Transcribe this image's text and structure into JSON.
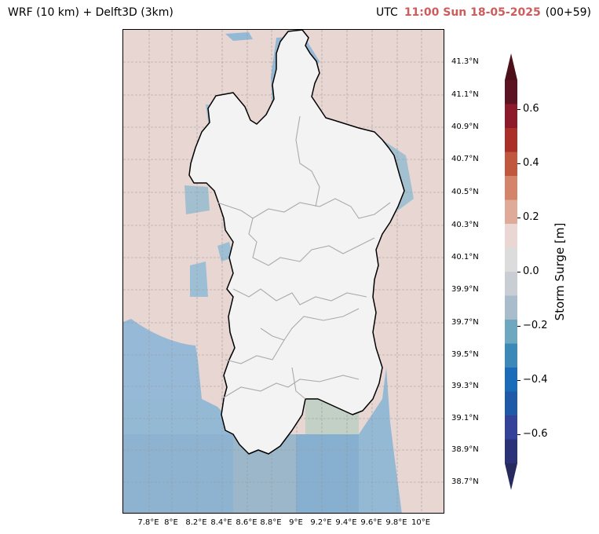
{
  "header": {
    "model_label": "WRF (10 km) + Delft3D (3km)",
    "utc_label": "UTC",
    "time_label": "11:00 Sun 18-05-2025",
    "lead_label": "(00+59)"
  },
  "map": {
    "region": "Sardinia",
    "lat_labels": [
      "41.3°N",
      "41.1°N",
      "40.9°N",
      "40.7°N",
      "40.5°N",
      "40.3°N",
      "40.1°N",
      "39.9°N",
      "39.7°N",
      "39.5°N",
      "39.3°N",
      "39.1°N",
      "38.9°N",
      "38.7°N"
    ],
    "lon_labels": [
      "7.8°E",
      "8°E",
      "8.2°E",
      "8.4°E",
      "8.6°E",
      "8.8°E",
      "9°E",
      "9.2°E",
      "9.4°E",
      "9.6°E",
      "9.8°E",
      "10°E"
    ],
    "colors": {
      "land": "#f3f3f3",
      "sea_positive": "#e8d6d3",
      "sea_negative": "#86b4d6",
      "coastline": "#000000",
      "boundaries": "#aaaaaa",
      "grid": "#999999"
    }
  },
  "colorbar": {
    "label": "Storm Surge [m]",
    "ticks": [
      "0.6",
      "0.4",
      "0.2",
      "0.0",
      "−0.2",
      "−0.4",
      "−0.6"
    ],
    "colors_top_to_bottom": [
      "#4d1018",
      "#5c1422",
      "#8c1a2a",
      "#ac2e28",
      "#c0583e",
      "#d48468",
      "#e0aa98",
      "#ead6d3",
      "#dcdcdc",
      "#c8ced4",
      "#a8bccb",
      "#6ea8c0",
      "#3b88b9",
      "#1a6cb8",
      "#1e5aa8",
      "#34429a",
      "#2c3278",
      "#262a5c"
    ]
  }
}
